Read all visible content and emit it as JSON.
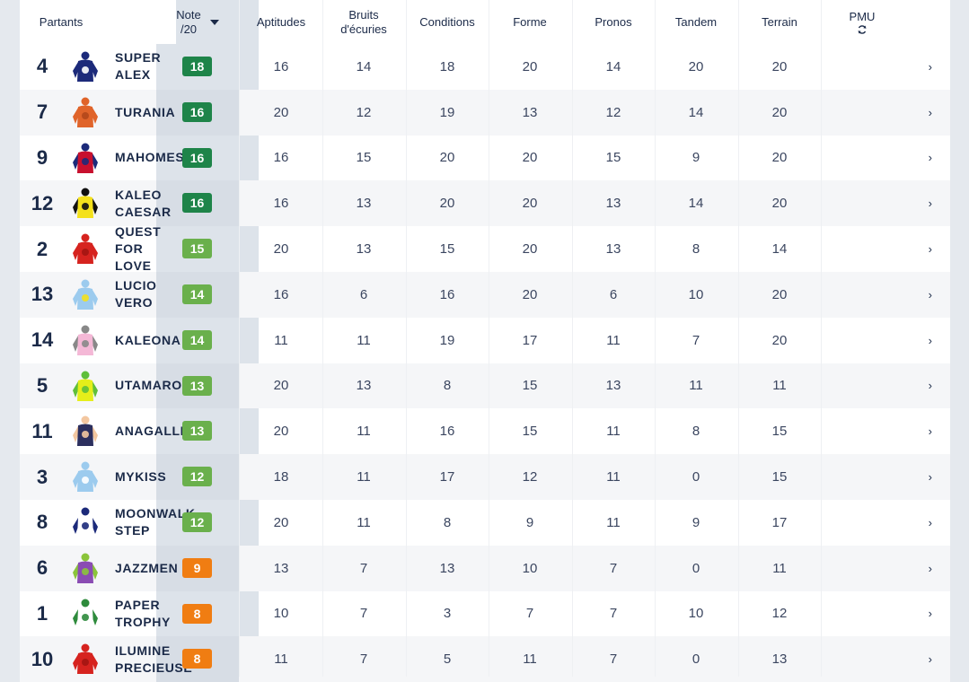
{
  "header": {
    "partants": "Partants",
    "note_line1": "Note",
    "note_line2": "/20",
    "aptitudes": "Aptitudes",
    "bruits_line1": "Bruits",
    "bruits_line2": "d'écuries",
    "conditions": "Conditions",
    "forme": "Forme",
    "pronos": "Pronos",
    "tandem": "Tandem",
    "terrain": "Terrain",
    "pmu": "PMU",
    "pmu_icon": "refresh-icon"
  },
  "colors": {
    "dark_green": "#1e8449",
    "green": "#6ab04c",
    "orange": "#f07d12"
  },
  "rows": [
    {
      "num": "4",
      "name": "SUPER\nALEX",
      "note": "18",
      "note_color": "#1e8449",
      "aptitudes": "16",
      "bruits": "14",
      "conditions": "18",
      "forme": "20",
      "pronos": "14",
      "tandem": "20",
      "terrain": "20",
      "silk": "navy-blue-dot"
    },
    {
      "num": "7",
      "name": "TURANIA",
      "note": "16",
      "note_color": "#1e8449",
      "aptitudes": "20",
      "bruits": "12",
      "conditions": "19",
      "forme": "13",
      "pronos": "12",
      "tandem": "14",
      "terrain": "20",
      "silk": "orange"
    },
    {
      "num": "9",
      "name": "MAHOMES",
      "note": "16",
      "note_color": "#1e8449",
      "aptitudes": "16",
      "bruits": "15",
      "conditions": "20",
      "forme": "20",
      "pronos": "15",
      "tandem": "9",
      "terrain": "20",
      "silk": "red-navy-diamonds"
    },
    {
      "num": "12",
      "name": "KALEO\nCAESAR",
      "note": "16",
      "note_color": "#1e8449",
      "aptitudes": "16",
      "bruits": "13",
      "conditions": "20",
      "forme": "20",
      "pronos": "13",
      "tandem": "14",
      "terrain": "20",
      "silk": "yellow-black-cross"
    },
    {
      "num": "2",
      "name": "QUEST\nFOR\nLOVE",
      "note": "15",
      "note_color": "#6ab04c",
      "aptitudes": "20",
      "bruits": "13",
      "conditions": "15",
      "forme": "20",
      "pronos": "13",
      "tandem": "8",
      "terrain": "14",
      "silk": "red"
    },
    {
      "num": "13",
      "name": "LUCIO\nVERO",
      "note": "14",
      "note_color": "#6ab04c",
      "aptitudes": "16",
      "bruits": "6",
      "conditions": "16",
      "forme": "20",
      "pronos": "6",
      "tandem": "10",
      "terrain": "20",
      "silk": "lightblue-star"
    },
    {
      "num": "14",
      "name": "KALEONA",
      "note": "14",
      "note_color": "#6ab04c",
      "aptitudes": "11",
      "bruits": "11",
      "conditions": "19",
      "forme": "17",
      "pronos": "11",
      "tandem": "7",
      "terrain": "20",
      "silk": "pink-grey"
    },
    {
      "num": "5",
      "name": "UTAMARO",
      "note": "13",
      "note_color": "#6ab04c",
      "aptitudes": "20",
      "bruits": "13",
      "conditions": "8",
      "forme": "15",
      "pronos": "13",
      "tandem": "11",
      "terrain": "11",
      "silk": "yellow-green"
    },
    {
      "num": "11",
      "name": "ANAGALLIS",
      "note": "13",
      "note_color": "#6ab04c",
      "aptitudes": "20",
      "bruits": "11",
      "conditions": "16",
      "forme": "15",
      "pronos": "11",
      "tandem": "8",
      "terrain": "15",
      "silk": "navy-peach-stripes"
    },
    {
      "num": "3",
      "name": "MYKISS",
      "note": "12",
      "note_color": "#6ab04c",
      "aptitudes": "18",
      "bruits": "11",
      "conditions": "17",
      "forme": "12",
      "pronos": "11",
      "tandem": "0",
      "terrain": "15",
      "silk": "lightblue-l"
    },
    {
      "num": "8",
      "name": "MOONWALK\nSTEP",
      "note": "12",
      "note_color": "#6ab04c",
      "aptitudes": "20",
      "bruits": "11",
      "conditions": "8",
      "forme": "9",
      "pronos": "11",
      "tandem": "9",
      "terrain": "17",
      "silk": "white-navy-stars"
    },
    {
      "num": "6",
      "name": "JAZZMEN",
      "note": "9",
      "note_color": "#f07d12",
      "aptitudes": "13",
      "bruits": "7",
      "conditions": "13",
      "forme": "10",
      "pronos": "7",
      "tandem": "0",
      "terrain": "11",
      "silk": "purple-green"
    },
    {
      "num": "1",
      "name": "PAPER\nTROPHY",
      "note": "8",
      "note_color": "#f07d12",
      "aptitudes": "10",
      "bruits": "7",
      "conditions": "3",
      "forme": "7",
      "pronos": "7",
      "tandem": "10",
      "terrain": "12",
      "silk": "white-green-v"
    },
    {
      "num": "10",
      "name": "ILUMINE\nPRECIEUSE",
      "note": "8",
      "note_color": "#f07d12",
      "aptitudes": "11",
      "bruits": "7",
      "conditions": "5",
      "forme": "11",
      "pronos": "7",
      "tandem": "0",
      "terrain": "13",
      "silk": "red"
    }
  ]
}
